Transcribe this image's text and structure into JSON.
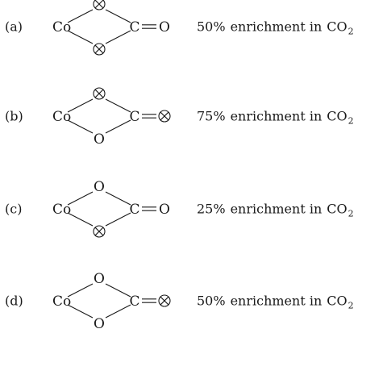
{
  "structures": [
    {
      "label": "(a)",
      "metal": "Co",
      "top_atom": "⊗",
      "bottom_atom": "⊗",
      "carbon": "C",
      "terminal_atom": "O",
      "top_labeled": true,
      "bottom_labeled": true,
      "terminal_labeled": false,
      "enrichment_value": "50%",
      "enrichment_text": "enrichment in",
      "product": "CO",
      "product_subscript": "2"
    },
    {
      "label": "(b)",
      "metal": "Co",
      "top_atom": "⊗",
      "bottom_atom": "O",
      "carbon": "C",
      "terminal_atom": "⊗",
      "top_labeled": true,
      "bottom_labeled": false,
      "terminal_labeled": true,
      "enrichment_value": "75%",
      "enrichment_text": "enrichment in",
      "product": "CO",
      "product_subscript": "2"
    },
    {
      "label": "(c)",
      "metal": "Co",
      "top_atom": "O",
      "bottom_atom": "⊗",
      "carbon": "C",
      "terminal_atom": "O",
      "top_labeled": false,
      "bottom_labeled": true,
      "terminal_labeled": false,
      "enrichment_value": "25%",
      "enrichment_text": "enrichment in",
      "product": "CO",
      "product_subscript": "2"
    },
    {
      "label": "(d)",
      "metal": "Co",
      "top_atom": "O",
      "bottom_atom": "O",
      "carbon": "C",
      "terminal_atom": "⊗",
      "top_labeled": false,
      "bottom_labeled": false,
      "terminal_labeled": true,
      "enrichment_value": "50%",
      "enrichment_text": "enrichment in",
      "product": "CO",
      "product_subscript": "2"
    }
  ]
}
